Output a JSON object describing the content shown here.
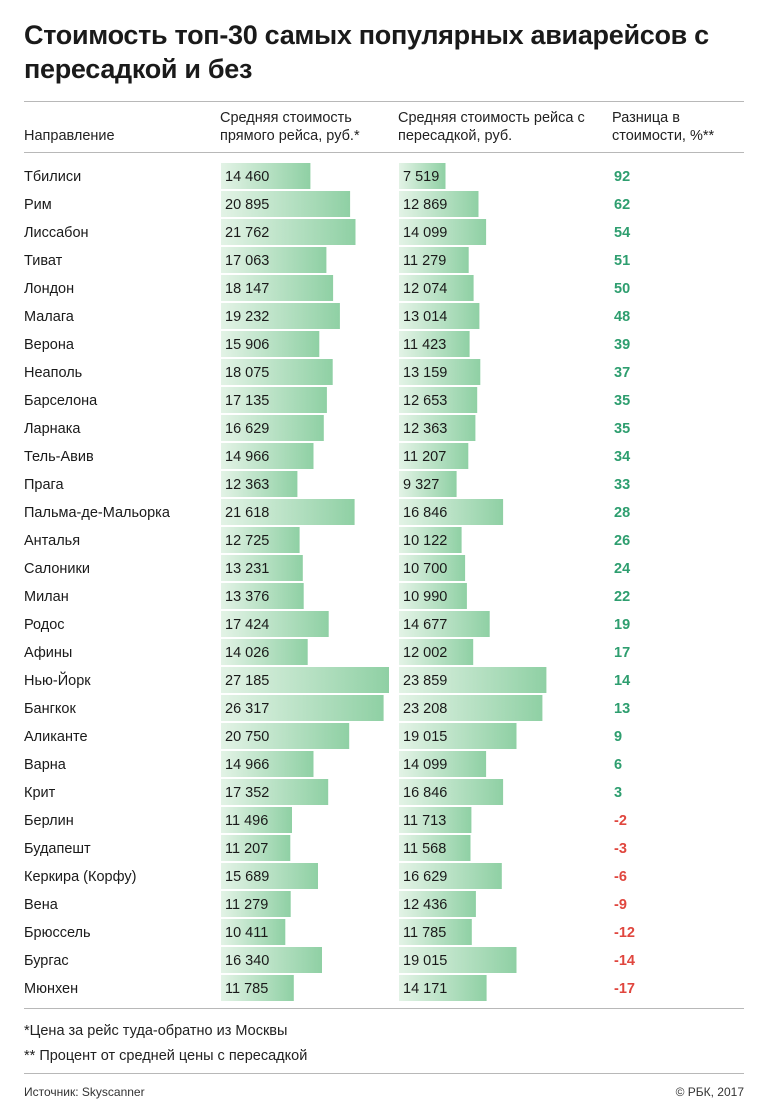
{
  "title": "Стоимость топ-30 самых популярных авиарейсов с пересадкой и без",
  "headers": {
    "direction": "Направление",
    "direct": "Средняя стоимость прямого рейса, руб.*",
    "transfer": "Средняя стоимость рейса с пересадкой, руб.",
    "diff": "Разница в стоимости, %**"
  },
  "colors": {
    "positive": "#2e9e6f",
    "negative": "#e0463e",
    "bar_light": "#e3f3e6",
    "bar_dark": "#8fd0a4",
    "text": "#1a1a1a"
  },
  "chart_data": {
    "type": "table",
    "columns": [
      "Направление",
      "Средняя стоимость прямого рейса, руб.*",
      "Средняя стоимость рейса с пересадкой, руб.",
      "Разница в стоимости, %**"
    ],
    "rows": [
      {
        "city": "Тбилиси",
        "direct": 14460,
        "direct_label": "14 460",
        "transfer": 7519,
        "transfer_label": "7 519",
        "diff": 92,
        "diff_label": "92"
      },
      {
        "city": "Рим",
        "direct": 20895,
        "direct_label": "20 895",
        "transfer": 12869,
        "transfer_label": "12 869",
        "diff": 62,
        "diff_label": "62"
      },
      {
        "city": "Лиссабон",
        "direct": 21762,
        "direct_label": "21 762",
        "transfer": 14099,
        "transfer_label": "14 099",
        "diff": 54,
        "diff_label": "54"
      },
      {
        "city": "Тиват",
        "direct": 17063,
        "direct_label": "17 063",
        "transfer": 11279,
        "transfer_label": "11 279",
        "diff": 51,
        "diff_label": "51"
      },
      {
        "city": "Лондон",
        "direct": 18147,
        "direct_label": "18 147",
        "transfer": 12074,
        "transfer_label": "12 074",
        "diff": 50,
        "diff_label": "50"
      },
      {
        "city": "Малага",
        "direct": 19232,
        "direct_label": "19 232",
        "transfer": 13014,
        "transfer_label": "13 014",
        "diff": 48,
        "diff_label": "48"
      },
      {
        "city": "Верона",
        "direct": 15906,
        "direct_label": "15 906",
        "transfer": 11423,
        "transfer_label": "11 423",
        "diff": 39,
        "diff_label": "39"
      },
      {
        "city": "Неаполь",
        "direct": 18075,
        "direct_label": "18 075",
        "transfer": 13159,
        "transfer_label": "13 159",
        "diff": 37,
        "diff_label": "37"
      },
      {
        "city": "Барселона",
        "direct": 17135,
        "direct_label": "17 135",
        "transfer": 12653,
        "transfer_label": "12 653",
        "diff": 35,
        "diff_label": "35"
      },
      {
        "city": "Ларнака",
        "direct": 16629,
        "direct_label": "16 629",
        "transfer": 12363,
        "transfer_label": "12 363",
        "diff": 35,
        "diff_label": "35"
      },
      {
        "city": "Тель-Авив",
        "direct": 14966,
        "direct_label": "14 966",
        "transfer": 11207,
        "transfer_label": "11 207",
        "diff": 34,
        "diff_label": "34"
      },
      {
        "city": "Прага",
        "direct": 12363,
        "direct_label": "12 363",
        "transfer": 9327,
        "transfer_label": "9 327",
        "diff": 33,
        "diff_label": "33"
      },
      {
        "city": "Пальма-де-Мальорка",
        "direct": 21618,
        "direct_label": "21 618",
        "transfer": 16846,
        "transfer_label": "16 846",
        "diff": 28,
        "diff_label": "28"
      },
      {
        "city": "Анталья",
        "direct": 12725,
        "direct_label": "12 725",
        "transfer": 10122,
        "transfer_label": "10 122",
        "diff": 26,
        "diff_label": "26"
      },
      {
        "city": "Салоники",
        "direct": 13231,
        "direct_label": "13 231",
        "transfer": 10700,
        "transfer_label": "10 700",
        "diff": 24,
        "diff_label": "24"
      },
      {
        "city": "Милан",
        "direct": 13376,
        "direct_label": "13 376",
        "transfer": 10990,
        "transfer_label": "10 990",
        "diff": 22,
        "diff_label": "22"
      },
      {
        "city": "Родос",
        "direct": 17424,
        "direct_label": "17 424",
        "transfer": 14677,
        "transfer_label": "14 677",
        "diff": 19,
        "diff_label": "19"
      },
      {
        "city": "Афины",
        "direct": 14026,
        "direct_label": "14 026",
        "transfer": 12002,
        "transfer_label": "12 002",
        "diff": 17,
        "diff_label": "17"
      },
      {
        "city": "Нью-Йорк",
        "direct": 27185,
        "direct_label": "27 185",
        "transfer": 23859,
        "transfer_label": "23 859",
        "diff": 14,
        "diff_label": "14"
      },
      {
        "city": "Бангкок",
        "direct": 26317,
        "direct_label": "26 317",
        "transfer": 23208,
        "transfer_label": "23 208",
        "diff": 13,
        "diff_label": "13"
      },
      {
        "city": "Аликанте",
        "direct": 20750,
        "direct_label": "20 750",
        "transfer": 19015,
        "transfer_label": "19 015",
        "diff": 9,
        "diff_label": "9"
      },
      {
        "city": "Варна",
        "direct": 14966,
        "direct_label": "14 966",
        "transfer": 14099,
        "transfer_label": "14 099",
        "diff": 6,
        "diff_label": "6"
      },
      {
        "city": "Крит",
        "direct": 17352,
        "direct_label": "17 352",
        "transfer": 16846,
        "transfer_label": "16 846",
        "diff": 3,
        "diff_label": "3"
      },
      {
        "city": "Берлин",
        "direct": 11496,
        "direct_label": "11 496",
        "transfer": 11713,
        "transfer_label": "11 713",
        "diff": -2,
        "diff_label": "-2"
      },
      {
        "city": "Будапешт",
        "direct": 11207,
        "direct_label": "11 207",
        "transfer": 11568,
        "transfer_label": "11 568",
        "diff": -3,
        "diff_label": "-3"
      },
      {
        "city": "Керкира (Корфу)",
        "direct": 15689,
        "direct_label": "15 689",
        "transfer": 16629,
        "transfer_label": "16 629",
        "diff": -6,
        "diff_label": "-6"
      },
      {
        "city": "Вена",
        "direct": 11279,
        "direct_label": "11 279",
        "transfer": 12436,
        "transfer_label": "12 436",
        "diff": -9,
        "diff_label": "-9"
      },
      {
        "city": "Брюссель",
        "direct": 10411,
        "direct_label": "10 411",
        "transfer": 11785,
        "transfer_label": "11 785",
        "diff": -12,
        "diff_label": "-12"
      },
      {
        "city": "Бургас",
        "direct": 16340,
        "direct_label": "16 340",
        "transfer": 19015,
        "transfer_label": "19 015",
        "diff": -14,
        "diff_label": "-14"
      },
      {
        "city": "Мюнхен",
        "direct": 11785,
        "direct_label": "11 785",
        "transfer": 14171,
        "transfer_label": "14 171",
        "diff": -17,
        "diff_label": "-17"
      }
    ]
  },
  "footnotes": [
    "*Цена за рейс туда-обратно из Москвы",
    "** Процент от средней цены с пересадкой"
  ],
  "source": "Источник: Skyscanner",
  "copyright": "© РБК, 2017"
}
